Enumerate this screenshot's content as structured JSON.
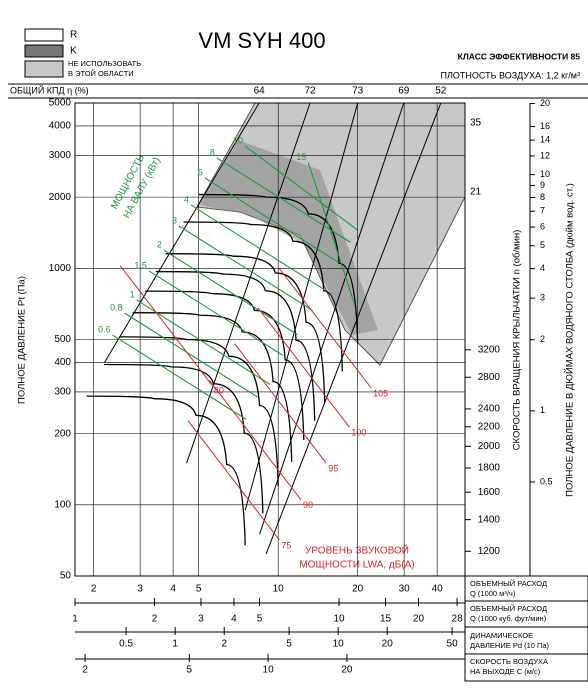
{
  "chart_data": {
    "type": "line",
    "title": "VM SYH 400",
    "subtitle": [
      "КЛАСС ЭФФЕКТИВНОСТИ 85",
      "ПЛОТНОСТЬ ВОЗДУХА: 1,2 кг/м³"
    ],
    "legend_labels": [
      "R",
      "K",
      "НЕ ИСПОЛЬЗОВАТЬ",
      "В ЭТОЙ ОБЛАСТИ"
    ],
    "efficiency_label": "ОБЩИЙ КПД η (%)",
    "y_label": "ПОЛНОЕ ДАВЛЕНИЕ Pt (Па)",
    "y2_label": "ПОЛНОЕ ДАВЛЕНИЕ В ДЮЙМАХ ВОДЯНОГО СТОЛБА (дюйм вод. ст.)",
    "y3_label": "СКОРОСТЬ ВРАЩЕНИЯ КРЫЛЬЧАТКИ n (об/мин)",
    "x_label": [
      "ОБЪЕМНЫЙ РАСХОД",
      "Q (1000 м³/ч)"
    ],
    "power_label": [
      "МОЩНОСТЬ",
      "НА ВАЛУ (кВт)"
    ],
    "sound_label": [
      "УРОВЕНЬ ЗВУКОВОЙ",
      "МОЩНОСТИ LWA, дБ(A)"
    ],
    "annotations": [
      "35",
      "21"
    ],
    "xscale": "log",
    "xlim": [
      1.7,
      51
    ],
    "xticks": [
      2,
      3,
      4,
      5,
      10,
      20,
      30,
      40
    ],
    "yscale": "log",
    "ylim": [
      50,
      5000
    ],
    "yticks": [
      50,
      100,
      200,
      300,
      400,
      500,
      1000,
      2000,
      3000,
      4000,
      5000
    ],
    "y2scale": "log",
    "y2lim": [
      0.2,
      20.1
    ],
    "y2ticks": [
      0.5,
      1,
      2,
      3,
      4,
      5,
      6,
      7,
      8,
      9,
      10,
      12,
      14,
      16,
      20
    ],
    "y3scale": "log",
    "y3lim": [
      1064,
      10640
    ],
    "y3ticks": [
      1200,
      1400,
      1600,
      1800,
      2000,
      2200,
      2400,
      2800,
      3200
    ],
    "grid": true,
    "x_axes": [
      {
        "label": [
          "ОБЪЕМНЫЙ РАСХОД",
          "Q (1000 куб. фут/мин)"
        ],
        "lim": [
          1.0,
          30.0
        ],
        "ticks": [
          1,
          2,
          3,
          4,
          5,
          10,
          15,
          20,
          28
        ]
      },
      {
        "label": [
          "ДИНАМИЧЕСКОЕ",
          "ДАВЛЕНИЕ Pd (10 Па)"
        ],
        "lim": [
          0.243,
          60
        ],
        "ticks": [
          0.5,
          1,
          2,
          5,
          10,
          20,
          50
        ]
      },
      {
        "label": [
          "СКОРОСТЬ ВОЗДУХА",
          "НА ВЫХОДЕ С (м/с)"
        ],
        "lim": [
          1.83,
          56.5
        ],
        "ticks": [
          2,
          5,
          10,
          20
        ]
      }
    ],
    "fan_curves": [
      {
        "color": "#000000",
        "x": [
          5.0,
          9.0,
          13,
          17,
          20
        ],
        "values": [
          2050,
          2000,
          1700,
          1050,
          480
        ]
      },
      {
        "color": "#000000",
        "x": [
          4.38,
          7.88,
          11.38,
          14.88,
          17.5
        ],
        "values": [
          1570,
          1531,
          1302,
          804,
          367
        ]
      },
      {
        "color": "#000000",
        "x": [
          3.75,
          6.75,
          9.75,
          12.75,
          15
        ],
        "values": [
          1153,
          1125,
          956,
          591,
          270
        ]
      },
      {
        "color": "#000000",
        "x": [
          3.44,
          6.19,
          8.94,
          11.69,
          13.75
        ],
        "values": [
          969,
          945,
          804,
          496,
          227
        ]
      },
      {
        "color": "#000000",
        "x": [
          3.13,
          5.63,
          8.13,
          10.63,
          12.5
        ],
        "values": [
          801,
          781,
          664,
          410,
          188
        ]
      },
      {
        "color": "#000000",
        "x": [
          2.81,
          5.06,
          7.31,
          9.56,
          11.25
        ],
        "values": [
          649,
          633,
          538,
          332,
          152
        ]
      },
      {
        "color": "#000000",
        "x": [
          2.5,
          4.5,
          6.5,
          8.5,
          10
        ],
        "values": [
          513,
          500,
          425,
          263,
          120
        ]
      },
      {
        "color": "#000000",
        "x": [
          2.19,
          3.94,
          5.69,
          7.44,
          8.75
        ],
        "values": [
          392,
          383,
          325,
          201,
          92
        ]
      },
      {
        "color": "#000000",
        "x": [
          1.88,
          3.38,
          4.88,
          6.38,
          7.5
        ],
        "values": [
          288,
          281,
          239,
          148,
          67.5
        ]
      }
    ],
    "power_lines": [
      {
        "name": "0.6",
        "color": "#1a9b3c",
        "x": [
          2.36,
          7.55
        ],
        "values": [
          522,
          230
        ]
      },
      {
        "name": "0.8",
        "color": "#1a9b3c",
        "x": [
          2.62,
          8.38
        ],
        "values": [
          647,
          285
        ]
      },
      {
        "name": "1",
        "color": "#1a9b3c",
        "x": [
          2.91,
          9.31
        ],
        "values": [
          735,
          323
        ]
      },
      {
        "name": "1.5",
        "color": "#1a9b3c",
        "x": [
          3.24,
          10.4
        ],
        "values": [
          975,
          429
        ]
      },
      {
        "name": "2",
        "color": "#1a9b3c",
        "x": [
          3.69,
          11.8
        ],
        "values": [
          1194,
          525
        ]
      },
      {
        "name": "3",
        "color": "#1a9b3c",
        "x": [
          4.21,
          13.5
        ],
        "values": [
          1510,
          664
        ]
      },
      {
        "name": "4",
        "color": "#1a9b3c",
        "x": [
          4.67,
          14.9
        ],
        "values": [
          1853,
          815
        ]
      },
      {
        "name": "6",
        "color": "#1a9b3c",
        "x": [
          5.28,
          16.9
        ],
        "values": [
          2410,
          1060
        ]
      },
      {
        "name": "8",
        "color": "#1a9b3c",
        "x": [
          5.86,
          18.8
        ],
        "values": [
          2925,
          1287
        ]
      },
      {
        "name": "10",
        "color": "#1a9b3c",
        "x": [
          7.49,
          20
        ],
        "values": [
          3290,
          1450
        ]
      },
      {
        "name": "15",
        "color": "#1a9b3c",
        "x": [
          13,
          19.5
        ],
        "values": [
          2800,
          700
        ]
      }
    ],
    "sound_lines": [
      {
        "name": "75",
        "color": "#d9262c",
        "x": [
          4.55,
          10.1
        ],
        "values": [
          227,
          71
        ]
      },
      {
        "name": "80",
        "color": "#d9262c",
        "x": [
          2.52,
          5.61
        ],
        "values": [
          1027,
          321
        ]
      },
      {
        "name": "90",
        "color": "#d9262c",
        "x": [
          5.49,
          12.2
        ],
        "values": [
          336,
          105
        ]
      },
      {
        "name": "95",
        "color": "#d9262c",
        "x": [
          6.84,
          15.2
        ],
        "values": [
          480,
          150
        ]
      },
      {
        "name": "100",
        "color": "#d9262c",
        "x": [
          8.37,
          18.6
        ],
        "values": [
          682,
          213
        ]
      },
      {
        "name": "105",
        "color": "#d9262c",
        "x": [
          10.1,
          22.5
        ],
        "values": [
          998,
          312
        ]
      }
    ],
    "efficiency_lines": [
      {
        "name": "64",
        "color": "#000000",
        "x": [
          8.47,
          2.2
        ],
        "values": [
          5000,
          400
        ]
      },
      {
        "name": "72",
        "color": "#000000",
        "x": [
          13.2,
          4.5
        ],
        "values": [
          5000,
          150
        ]
      },
      {
        "name": "73",
        "color": "#000000",
        "x": [
          20.0,
          7.5
        ],
        "values": [
          5000,
          95
        ]
      },
      {
        "name": "69",
        "color": "#000000",
        "x": [
          29.9,
          8.5
        ],
        "values": [
          5000,
          75
        ]
      },
      {
        "name": "52",
        "color": "#000000",
        "x": [
          41.3,
          9
        ],
        "values": [
          5000,
          62
        ]
      }
    ]
  }
}
